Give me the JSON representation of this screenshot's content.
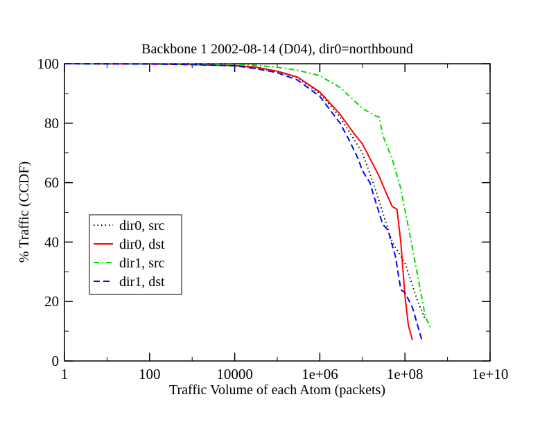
{
  "chart_data": {
    "type": "line",
    "title": "Backbone 1 2002-08-14 (D04), dir0=northbound",
    "xlabel": "Traffic Volume of each Atom (packets)",
    "ylabel": "% Traffic (CCDF)",
    "x_scale": "log",
    "xlim": [
      1,
      10000000000
    ],
    "ylim": [
      0,
      100
    ],
    "x_ticks": [
      {
        "value": 1,
        "label": "1"
      },
      {
        "value": 100,
        "label": "100"
      },
      {
        "value": 10000,
        "label": "10000"
      },
      {
        "value": 1000000,
        "label": "1e+06"
      },
      {
        "value": 100000000,
        "label": "1e+08"
      },
      {
        "value": 10000000000,
        "label": "1e+10"
      }
    ],
    "y_ticks": [
      {
        "value": 0,
        "label": "0"
      },
      {
        "value": 20,
        "label": "20"
      },
      {
        "value": 40,
        "label": "40"
      },
      {
        "value": 60,
        "label": "60"
      },
      {
        "value": 80,
        "label": "80"
      },
      {
        "value": 100,
        "label": "100"
      }
    ],
    "grid": false,
    "legend_position": "left-middle",
    "series": [
      {
        "name": "dir0, src",
        "color": "#000000",
        "dash": "dotted",
        "x": [
          1,
          100,
          1000,
          10000,
          30000,
          100000,
          300000,
          1000000,
          3000000,
          5000000,
          10000000,
          20000000,
          30000000,
          50000000,
          100000000,
          200000000,
          300000000
        ],
        "y": [
          100,
          99.9,
          99.7,
          99.3,
          98.6,
          97.3,
          95.3,
          90,
          82,
          77,
          70,
          58,
          50,
          40,
          33,
          20,
          14
        ]
      },
      {
        "name": "dir0, dst",
        "color": "#ff0000",
        "dash": "solid",
        "x": [
          1,
          100,
          1000,
          10000,
          30000,
          100000,
          300000,
          1000000,
          3000000,
          6000000,
          10000000,
          18000000,
          25000000,
          35000000,
          50000000,
          65000000,
          80000000,
          100000000,
          120000000,
          150000000
        ],
        "y": [
          100,
          99.9,
          99.7,
          99.4,
          98.9,
          97.5,
          95.5,
          90.5,
          83,
          77,
          73,
          66,
          62,
          57,
          52,
          51,
          40,
          22,
          12,
          7
        ]
      },
      {
        "name": "dir1, src",
        "color": "#00dd00",
        "dash": "dash-dot",
        "x": [
          1,
          100,
          1000,
          10000,
          30000,
          100000,
          300000,
          1000000,
          3000000,
          10000000,
          20000000,
          25000000,
          30000000,
          50000000,
          80000000,
          150000000,
          300000000,
          400000000
        ],
        "y": [
          100,
          99.95,
          99.9,
          99.8,
          99.5,
          98.8,
          97.8,
          96,
          92,
          85,
          82.5,
          82,
          76,
          68,
          58,
          38,
          15,
          11
        ]
      },
      {
        "name": "dir1, dst",
        "color": "#0000ff",
        "dash": "dashed",
        "x": [
          1,
          100,
          1000,
          10000,
          30000,
          100000,
          300000,
          1000000,
          3000000,
          5000000,
          8000000,
          10000000,
          15000000,
          20000000,
          30000000,
          40000000,
          60000000,
          80000000,
          100000000,
          150000000,
          250000000
        ],
        "y": [
          100,
          99.9,
          99.7,
          99.3,
          98.4,
          97,
          94.5,
          89,
          80,
          74,
          68,
          64,
          60,
          54,
          46,
          44,
          35,
          24,
          23,
          18,
          7
        ]
      }
    ]
  }
}
